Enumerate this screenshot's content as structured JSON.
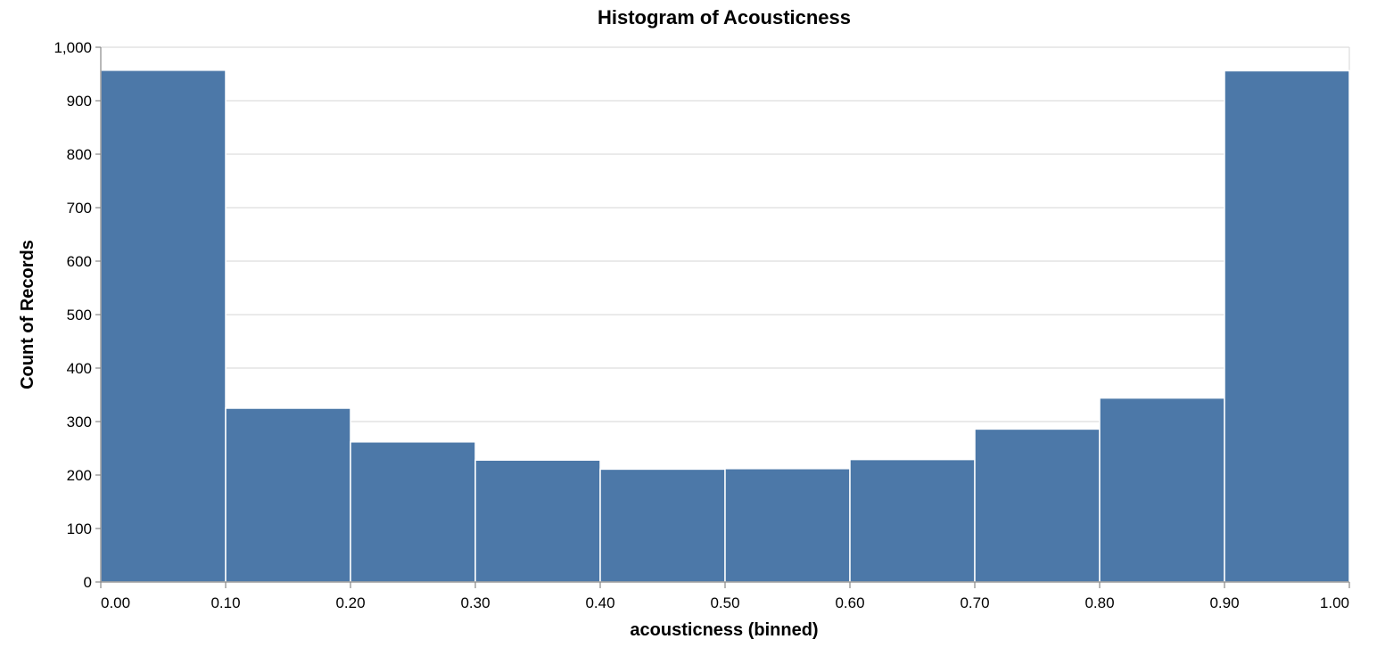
{
  "chart_data": {
    "type": "bar",
    "title": "Histogram of Acousticness",
    "xlabel": "acousticness (binned)",
    "ylabel": "Count of Records",
    "bin_edges": [
      0.0,
      0.1,
      0.2,
      0.3,
      0.4,
      0.5,
      0.6,
      0.7,
      0.8,
      0.9,
      1.0
    ],
    "values": [
      957,
      325,
      262,
      228,
      211,
      212,
      229,
      286,
      344,
      956
    ],
    "xlim": [
      0,
      1
    ],
    "ylim": [
      0,
      1000
    ],
    "x_tick_values": [
      0.0,
      0.1,
      0.2,
      0.3,
      0.4,
      0.5,
      0.6,
      0.7,
      0.8,
      0.9,
      1.0
    ],
    "x_tick_labels": [
      "0.00",
      "0.10",
      "0.20",
      "0.30",
      "0.40",
      "0.50",
      "0.60",
      "0.70",
      "0.80",
      "0.90",
      "1.00"
    ],
    "y_tick_values": [
      0,
      100,
      200,
      300,
      400,
      500,
      600,
      700,
      800,
      900,
      1000
    ],
    "y_tick_labels": [
      "0",
      "100",
      "200",
      "300",
      "400",
      "500",
      "600",
      "700",
      "800",
      "900",
      "1,000"
    ],
    "grid": true,
    "bar_color": "#4c78a8"
  }
}
